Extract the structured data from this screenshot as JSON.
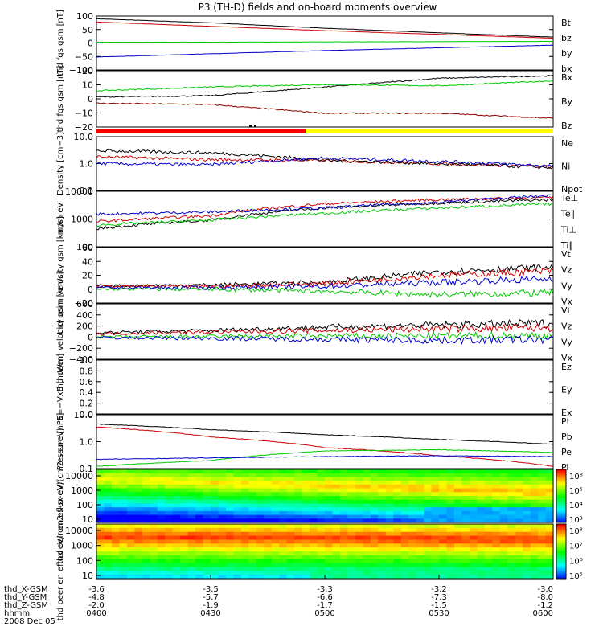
{
  "title": "P3 (TH-D) fields and on-board moments overview",
  "date_label": "2008 Dec 05",
  "colors": {
    "black": "#000000",
    "red": "#cc0000",
    "green": "#00c800",
    "blue": "#0000cc",
    "dark_red": "#8b0000",
    "mode_red": "#ff0000",
    "mode_yellow": "#ffff00"
  },
  "chart_data": [
    {
      "type": "line",
      "ylabel": "thd fgs gsm [nT]",
      "yticks": [
        "100",
        "50",
        "0",
        "−50",
        "−100"
      ],
      "ylim": [
        -100,
        100
      ],
      "x": [
        "0400",
        "0430",
        "0500",
        "0530",
        "0600"
      ],
      "series": [
        {
          "name": "Bt",
          "color": "#000000",
          "values": [
            90,
            75,
            55,
            38,
            22
          ]
        },
        {
          "name": "bz",
          "color": "#cc0000",
          "values": [
            78,
            62,
            46,
            32,
            18
          ]
        },
        {
          "name": "by",
          "color": "#00c800",
          "values": [
            3,
            3,
            4,
            5,
            6
          ]
        },
        {
          "name": "bx",
          "color": "#0000cc",
          "values": [
            -52,
            -40,
            -28,
            -18,
            -8
          ]
        }
      ]
    },
    {
      "type": "line",
      "ylabel": "thd fgs gsm [nT]",
      "yticks": [
        "20",
        "10",
        "0",
        "−10",
        "−20"
      ],
      "ylim": [
        -25,
        20
      ],
      "x": [
        "0400",
        "0430",
        "0500",
        "0530",
        "0600"
      ],
      "series": [
        {
          "name": "Bx",
          "color": "#000000",
          "values": [
            -1,
            0,
            7,
            14,
            16
          ]
        },
        {
          "name": "By",
          "color": "#00c800",
          "values": [
            4,
            7,
            9,
            8,
            12
          ]
        },
        {
          "name": "Bz",
          "color": "#8b0000",
          "values": [
            -6,
            -7,
            -14,
            -14,
            -18
          ]
        }
      ]
    },
    {
      "type": "line",
      "ylabel": "Density [cm−3]",
      "yticks": [
        "10.0",
        "1.0",
        "0.1"
      ],
      "log": true,
      "ylim": [
        0.1,
        10
      ],
      "x": [
        "0400",
        "0430",
        "0500",
        "0530",
        "0600"
      ],
      "series": [
        {
          "name": "Ne",
          "color": "#cc0000",
          "values": [
            1.8,
            1.4,
            1.3,
            1.0,
            0.75
          ]
        },
        {
          "name": "Ni",
          "color": "#000000",
          "values": [
            3.0,
            2.5,
            1.3,
            1.0,
            0.7
          ]
        },
        {
          "name": "Npot",
          "color": "#0000cc",
          "values": [
            1.0,
            0.9,
            1.6,
            1.2,
            0.8
          ]
        }
      ]
    },
    {
      "type": "line",
      "ylabel": "mom eV",
      "yticks": [
        "10000",
        "1000",
        "100"
      ],
      "log": true,
      "ylim": [
        100,
        10000
      ],
      "x": [
        "0400",
        "0430",
        "0500",
        "0530",
        "0600"
      ],
      "series": [
        {
          "name": "Te⊥",
          "color": "#cc0000",
          "values": [
            800,
            1300,
            3500,
            5000,
            6000
          ]
        },
        {
          "name": "Te∥",
          "color": "#000000",
          "values": [
            450,
            900,
            2500,
            3800,
            5000
          ]
        },
        {
          "name": "Ti⊥",
          "color": "#0000cc",
          "values": [
            1500,
            1800,
            2500,
            4000,
            7000
          ]
        },
        {
          "name": "Ti∥",
          "color": "#00c800",
          "values": [
            600,
            900,
            1600,
            2500,
            3500
          ]
        }
      ]
    },
    {
      "type": "line",
      "ylabel": "thd peim velocity gsm [km/s]",
      "yticks": [
        "60",
        "40",
        "20",
        "0",
        "−20"
      ],
      "ylim": [
        -20,
        60
      ],
      "x": [
        "0400",
        "0430",
        "0500",
        "0530",
        "0600"
      ],
      "series": [
        {
          "name": "Vt",
          "color": "#000000",
          "values": [
            5,
            6,
            10,
            25,
            32
          ]
        },
        {
          "name": "Vz",
          "color": "#cc0000",
          "values": [
            4,
            4,
            8,
            20,
            26
          ]
        },
        {
          "name": "Vy",
          "color": "#00c800",
          "values": [
            0,
            0,
            -3,
            -8,
            -5
          ]
        },
        {
          "name": "Vx",
          "color": "#0000cc",
          "values": [
            2,
            2,
            4,
            10,
            15
          ]
        }
      ]
    },
    {
      "type": "line",
      "ylabel": "thd peem velocity gsm [km/s]",
      "yticks": [
        "600",
        "400",
        "200",
        "0",
        "−200",
        "−400"
      ],
      "ylim": [
        -400,
        600
      ],
      "x": [
        "0400",
        "0430",
        "0500",
        "0530",
        "0600"
      ],
      "series": [
        {
          "name": "Vt",
          "color": "#000000",
          "values": [
            80,
            120,
            180,
            220,
            250
          ]
        },
        {
          "name": "Vz",
          "color": "#cc0000",
          "values": [
            60,
            90,
            120,
            150,
            170
          ]
        },
        {
          "name": "Vy",
          "color": "#00c800",
          "values": [
            0,
            10,
            20,
            20,
            30
          ]
        },
        {
          "name": "Vx",
          "color": "#0000cc",
          "values": [
            -10,
            -20,
            -40,
            -60,
            -40
          ]
        }
      ]
    },
    {
      "type": "line",
      "ylabel": "E=−VxB [mV/m]",
      "yticks": [
        "1.0",
        "0.8",
        "0.6",
        "0.4",
        "0.2",
        "0.0"
      ],
      "ylim": [
        0,
        1
      ],
      "series": [
        {
          "name": "Ez",
          "color": "#cc0000"
        },
        {
          "name": "Ey",
          "color": "#00c800"
        },
        {
          "name": "Ex",
          "color": "#0000cc"
        }
      ]
    },
    {
      "type": "line",
      "ylabel": "Pressure [nPa]",
      "yticks": [
        "10.0",
        "1.0",
        "0.1"
      ],
      "log": true,
      "ylim": [
        0.1,
        10
      ],
      "x": [
        "0400",
        "0430",
        "0500",
        "0530",
        "0600"
      ],
      "series": [
        {
          "name": "Pt",
          "color": "#000000",
          "values": [
            4.5,
            2.8,
            1.8,
            1.2,
            0.8
          ]
        },
        {
          "name": "Pb",
          "color": "#cc0000",
          "values": [
            3.5,
            1.5,
            0.6,
            0.3,
            0.12
          ]
        },
        {
          "name": "Pe",
          "color": "#00c800",
          "values": [
            0.12,
            0.2,
            0.45,
            0.5,
            0.4
          ]
        },
        {
          "name": "Pi",
          "color": "#0000cc",
          "values": [
            0.22,
            0.25,
            0.28,
            0.3,
            0.28
          ]
        }
      ]
    },
    {
      "type": "heatmap",
      "ylabel": "thd peir en eflux eV/(cm2-s-sr-eV)",
      "yticks": [
        "10000",
        "1000",
        "100",
        "10"
      ],
      "colorbar_ticks": [
        "10⁸",
        "10⁵",
        "10⁴",
        "10³"
      ]
    },
    {
      "type": "heatmap",
      "ylabel": "thd peer en eflux eV/(cm2-s-sr-eV)",
      "yticks": [
        "10000",
        "1000",
        "100",
        "10"
      ],
      "colorbar_ticks": [
        "10⁸",
        "10⁷",
        "10⁶",
        "10⁵"
      ]
    }
  ],
  "axis_rows": [
    {
      "label": "thd_X-GSM",
      "values": [
        "-3.6",
        "-3.5",
        "-3.3",
        "-3.2",
        "-3.0"
      ]
    },
    {
      "label": "thd_Y-GSM",
      "values": [
        "-4.8",
        "-5.7",
        "-6.6",
        "-7.3",
        "-8.0"
      ]
    },
    {
      "label": "thd_Z-GSM",
      "values": [
        "-2.0",
        "-1.9",
        "-1.7",
        "-1.5",
        "-1.2"
      ]
    },
    {
      "label": "hhmm",
      "values": [
        "0400",
        "0430",
        "0500",
        "0530",
        "0600"
      ]
    }
  ]
}
